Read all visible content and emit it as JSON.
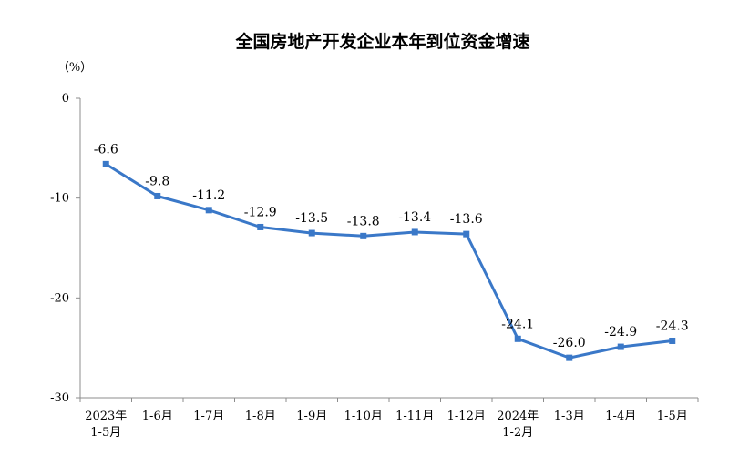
{
  "chart_data": {
    "type": "line",
    "title": "全国房地产开发企业本年到位资金增速",
    "unit_label": "（%）",
    "ylim": [
      -30,
      0
    ],
    "yticks": [
      "0",
      "-10",
      "-20",
      "-30"
    ],
    "ytick_values": [
      0,
      -10,
      -20,
      -30
    ],
    "categories": [
      [
        "2023年",
        "1-5月"
      ],
      [
        "1-6月"
      ],
      [
        "1-7月"
      ],
      [
        "1-8月"
      ],
      [
        "1-9月"
      ],
      [
        "1-10月"
      ],
      [
        "1-11月"
      ],
      [
        "1-12月"
      ],
      [
        "2024年",
        "1-2月"
      ],
      [
        "1-3月"
      ],
      [
        "1-4月"
      ],
      [
        "1-5月"
      ]
    ],
    "values": [
      -6.6,
      -9.8,
      -11.2,
      -12.9,
      -13.5,
      -13.8,
      -13.4,
      -13.6,
      -24.1,
      -26.0,
      -24.9,
      -24.3
    ],
    "value_labels": [
      "-6.6",
      "-9.8",
      "-11.2",
      "-12.9",
      "-13.5",
      "-13.8",
      "-13.4",
      "-13.6",
      "-24.1",
      "-26.0",
      "-24.9",
      "-24.3"
    ],
    "grid": false,
    "line_color": "#3a78c8",
    "axis_color": "#8c8c8c"
  }
}
